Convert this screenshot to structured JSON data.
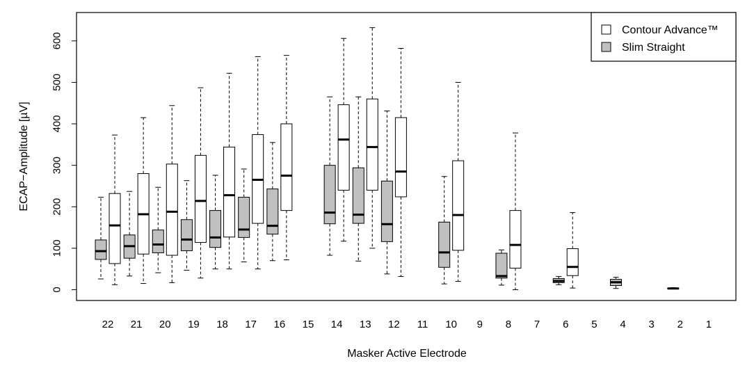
{
  "chart_data": {
    "type": "boxplot",
    "title": "",
    "xlabel": "Masker Active Electrode",
    "ylabel": "ECAP−Amplitude [µV]",
    "ylim": [
      -25,
      665
    ],
    "yticks": [
      0,
      100,
      200,
      300,
      400,
      500,
      600
    ],
    "categories": [
      "22",
      "21",
      "20",
      "19",
      "18",
      "17",
      "16",
      "15",
      "14",
      "13",
      "12",
      "11",
      "10",
      "9",
      "8",
      "7",
      "6",
      "5",
      "4",
      "3",
      "2",
      "1"
    ],
    "legend_position": "top-right",
    "series": [
      {
        "name": "Contour Advance™",
        "color": "#ffffff",
        "boxes": [
          {
            "electrode": "22",
            "min": 12,
            "q1": 63,
            "median": 155,
            "q3": 232,
            "max": 373
          },
          {
            "electrode": "21",
            "min": 15,
            "q1": 86,
            "median": 182,
            "q3": 280,
            "max": 415
          },
          {
            "electrode": "20",
            "min": 17,
            "q1": 83,
            "median": 188,
            "q3": 303,
            "max": 444
          },
          {
            "electrode": "19",
            "min": 28,
            "q1": 114,
            "median": 214,
            "q3": 324,
            "max": 487
          },
          {
            "electrode": "18",
            "min": 50,
            "q1": 127,
            "median": 228,
            "q3": 344,
            "max": 522
          },
          {
            "electrode": "17",
            "min": 50,
            "q1": 160,
            "median": 265,
            "q3": 374,
            "max": 562
          },
          {
            "electrode": "16",
            "min": 72,
            "q1": 191,
            "median": 275,
            "q3": 400,
            "max": 565
          },
          {
            "electrode": "14",
            "min": 117,
            "q1": 240,
            "median": 362,
            "q3": 446,
            "max": 606
          },
          {
            "electrode": "13",
            "min": 100,
            "q1": 240,
            "median": 344,
            "q3": 460,
            "max": 632
          },
          {
            "electrode": "12",
            "min": 32,
            "q1": 224,
            "median": 285,
            "q3": 415,
            "max": 582
          },
          {
            "electrode": "10",
            "min": 20,
            "q1": 95,
            "median": 180,
            "q3": 311,
            "max": 500
          },
          {
            "electrode": "8",
            "min": 0,
            "q1": 52,
            "median": 108,
            "q3": 191,
            "max": 378
          },
          {
            "electrode": "6",
            "min": 4,
            "q1": 34,
            "median": 55,
            "q3": 99,
            "max": 186
          }
        ]
      },
      {
        "name": "Slim Straight",
        "color": "#c0c0c0",
        "boxes": [
          {
            "electrode": "22",
            "min": 26,
            "q1": 73,
            "median": 93,
            "q3": 120,
            "max": 223
          },
          {
            "electrode": "21",
            "min": 33,
            "q1": 76,
            "median": 105,
            "q3": 132,
            "max": 237
          },
          {
            "electrode": "20",
            "min": 41,
            "q1": 89,
            "median": 109,
            "q3": 144,
            "max": 247
          },
          {
            "electrode": "19",
            "min": 47,
            "q1": 94,
            "median": 121,
            "q3": 169,
            "max": 263
          },
          {
            "electrode": "18",
            "min": 50,
            "q1": 102,
            "median": 126,
            "q3": 191,
            "max": 276
          },
          {
            "electrode": "17",
            "min": 67,
            "q1": 126,
            "median": 145,
            "q3": 223,
            "max": 291
          },
          {
            "electrode": "16",
            "min": 70,
            "q1": 134,
            "median": 154,
            "q3": 243,
            "max": 355
          },
          {
            "electrode": "14",
            "min": 83,
            "q1": 159,
            "median": 186,
            "q3": 300,
            "max": 465
          },
          {
            "electrode": "13",
            "min": 69,
            "q1": 160,
            "median": 181,
            "q3": 294,
            "max": 465
          },
          {
            "electrode": "12",
            "min": 38,
            "q1": 116,
            "median": 158,
            "q3": 262,
            "max": 431
          },
          {
            "electrode": "10",
            "min": 14,
            "q1": 54,
            "median": 90,
            "q3": 163,
            "max": 273
          },
          {
            "electrode": "8",
            "min": 11,
            "q1": 28,
            "median": 33,
            "q3": 88,
            "max": 96
          },
          {
            "electrode": "6",
            "min": 12,
            "q1": 17,
            "median": 21,
            "q3": 27,
            "max": 32
          },
          {
            "electrode": "4",
            "min": 3,
            "q1": 10,
            "median": 18,
            "q3": 25,
            "max": 30
          },
          {
            "electrode": "2",
            "min": 2,
            "q1": 2,
            "median": 3,
            "q3": 4,
            "max": 5
          }
        ]
      }
    ]
  }
}
